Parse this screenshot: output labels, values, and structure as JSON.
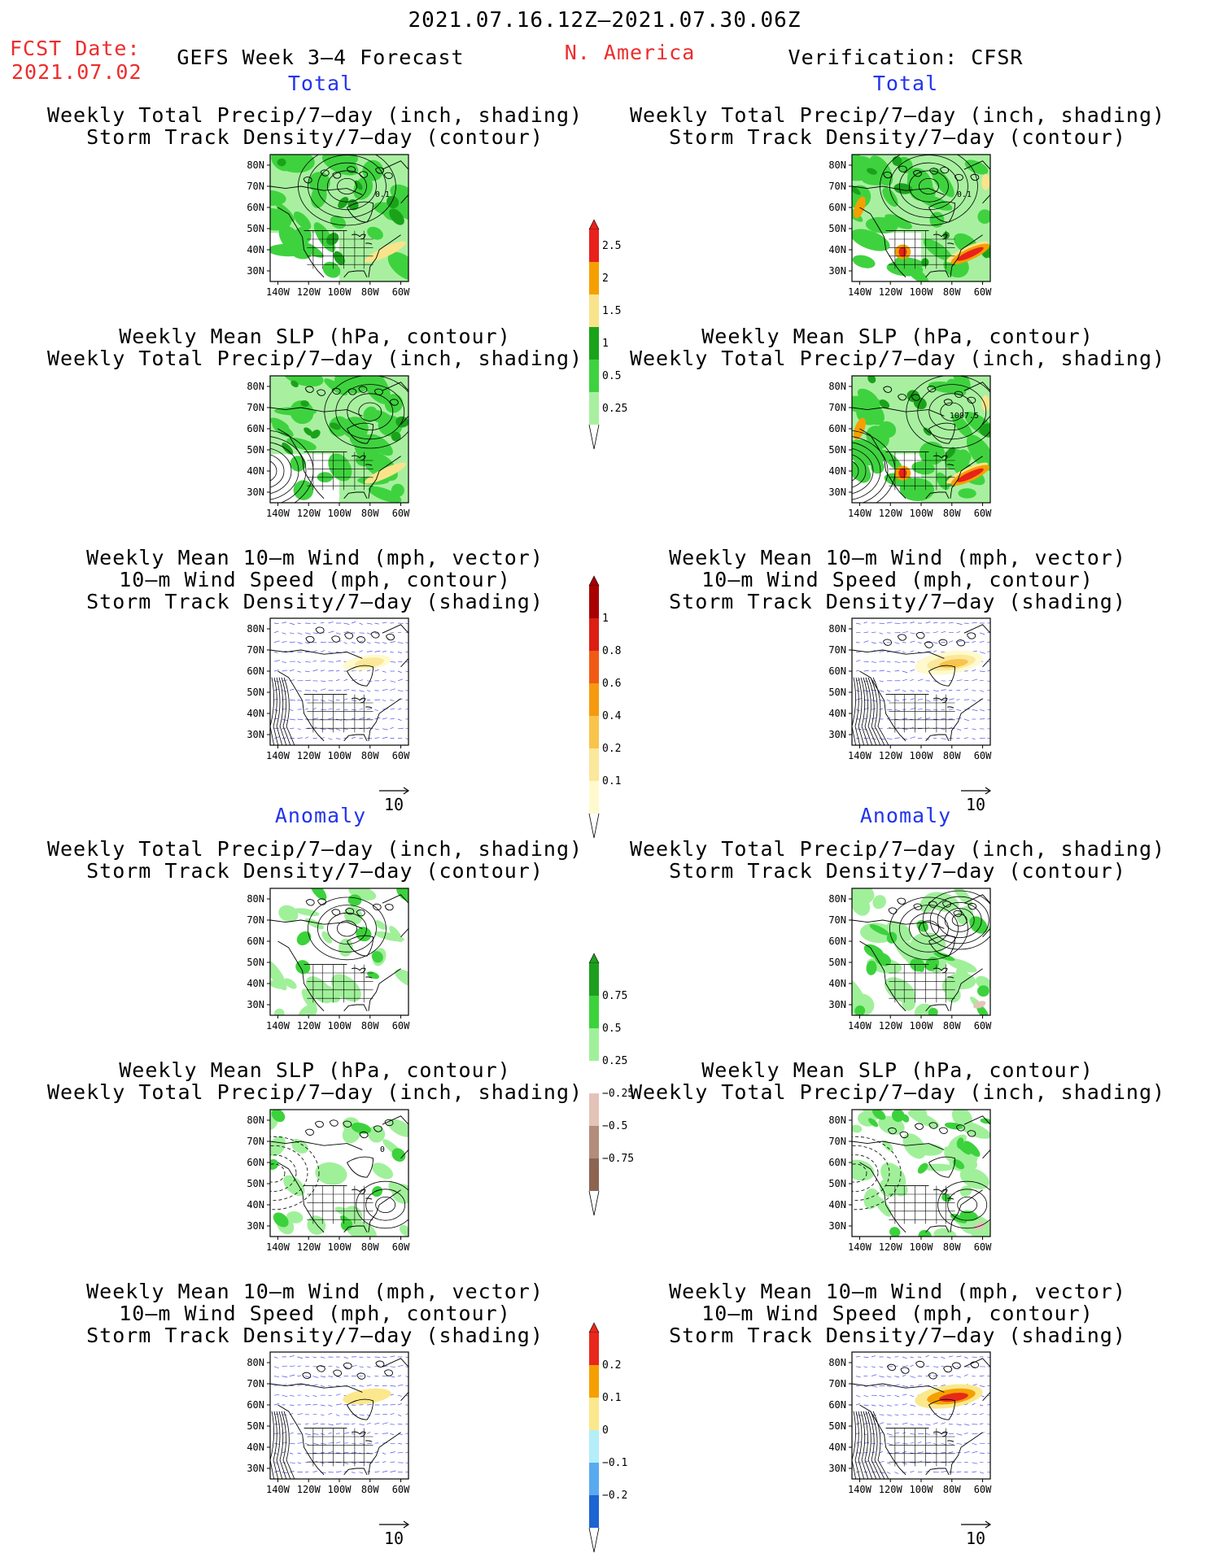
{
  "header": {
    "period": "2021.07.16.12Z–2021.07.30.06Z",
    "fcst_label": "FCST Date:",
    "fcst_date": "2021.07.02",
    "forecast_title": "GEFS Week 3–4 Forecast",
    "region": "N. America",
    "verification": "Verification: CFSR"
  },
  "sections": {
    "total_left": "Total",
    "total_right": "Total",
    "anomaly_left": "Anomaly",
    "anomaly_right": "Anomaly"
  },
  "titles": {
    "precip_track": [
      "Weekly Total Precip/7–day (inch, shading)",
      "Storm Track Density/7–day (contour)"
    ],
    "slp_precip": [
      "Weekly Mean SLP (hPa, contour)",
      "Weekly Total Precip/7–day (inch, shading)"
    ],
    "wind_track": [
      "Weekly Mean 10–m Wind (mph, vector)",
      "10–m Wind Speed (mph, contour)",
      "Storm Track Density/7–day (shading)"
    ]
  },
  "axes": {
    "lat_labels": [
      "80N",
      "70N",
      "60N",
      "50N",
      "40N",
      "30N"
    ],
    "lon_labels": [
      "140W",
      "120W",
      "100W",
      "80W",
      "60W"
    ]
  },
  "contour_labels": {
    "fcst_track": "0.1",
    "obs_track": "0.1",
    "obs_slp": "1007.5",
    "anom_slp_left": "0"
  },
  "vector_reference": "10",
  "colorbars": {
    "precip_total": {
      "labels": [
        "2.5",
        "2",
        "1.5",
        "1",
        "0.5",
        "0.25"
      ],
      "colors": [
        "#e8211c",
        "#f5a000",
        "#f9e48c",
        "#1aa31a",
        "#3fd23f",
        "#a8f0a0"
      ]
    },
    "track_total": {
      "labels": [
        "1",
        "0.8",
        "0.6",
        "0.4",
        "0.2",
        "0.1"
      ],
      "colors": [
        "#a80000",
        "#dc1e14",
        "#f05a14",
        "#f59a0f",
        "#f9c44c",
        "#fbe89a",
        "#fffacd"
      ]
    },
    "precip_anom": {
      "labels": [
        "0.75",
        "0.5",
        "0.25",
        "−0.25",
        "−0.5",
        "−0.75"
      ],
      "colors": [
        "#1e9e1e",
        "#3cd23c",
        "#a0f09a",
        "#ffffff",
        "#e4c4b8",
        "#b48c7c",
        "#8c6450"
      ]
    },
    "track_anom": {
      "labels": [
        "0.2",
        "0.1",
        "0",
        "−0.1",
        "−0.2"
      ],
      "colors": [
        "#e8281c",
        "#f5a000",
        "#fbe88c",
        "#b4eef8",
        "#5aaaf0",
        "#1e64d2"
      ]
    }
  }
}
